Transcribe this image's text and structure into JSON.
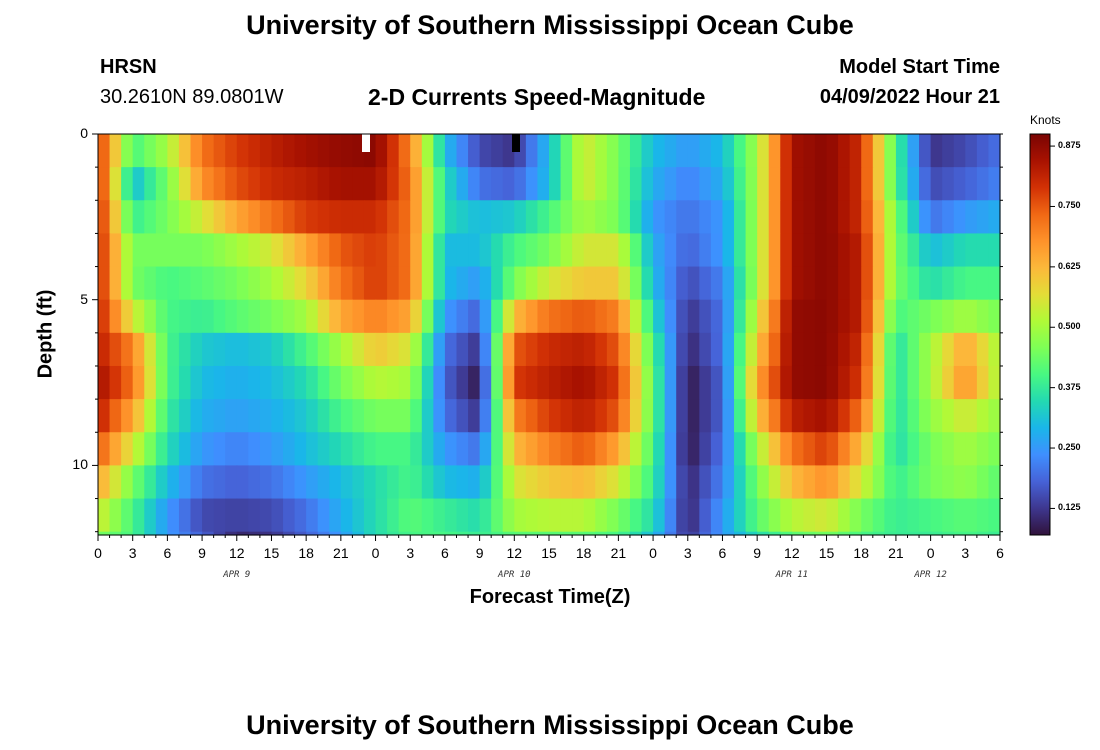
{
  "header": {
    "title": "University of Southern Mississippi Ocean Cube",
    "station": "HRSN",
    "coords": "30.2610N  89.0801W",
    "subtitle": "2-D Currents Speed-Magnitude",
    "model_start_label": "Model Start Time",
    "model_start_time": "04/09/2022 Hour 21"
  },
  "footer": {
    "title": "University of Southern Mississippi Ocean Cube"
  },
  "colorbar": {
    "unit": "Knots",
    "ticks": [
      "0.875",
      "0.750",
      "0.625",
      "0.500",
      "0.375",
      "0.250",
      "0.125"
    ],
    "tick_values": [
      0.875,
      0.75,
      0.625,
      0.5,
      0.375,
      0.25,
      0.125
    ],
    "range": [
      0.07,
      0.9
    ],
    "colors": [
      "#30123b",
      "#3e378f",
      "#4662d7",
      "#3f8fff",
      "#1ab6e9",
      "#23d9b2",
      "#48f882",
      "#7dff56",
      "#b0fa37",
      "#e3dd37",
      "#fcb83a",
      "#fe922a",
      "#f06814",
      "#d23105",
      "#a81201",
      "#7a0403"
    ]
  },
  "chart_data": {
    "type": "heatmap",
    "title": "2-D Currents Speed-Magnitude",
    "xlabel": "Forecast Time(Z)",
    "ylabel": "Depth (ft)",
    "xlim": [
      0,
      78
    ],
    "ylim": [
      12.1,
      0
    ],
    "x_ticks": [
      0,
      3,
      6,
      9,
      12,
      15,
      18,
      21,
      24,
      27,
      30,
      33,
      36,
      39,
      42,
      45,
      48,
      51,
      54,
      57,
      60,
      63,
      66,
      69,
      72,
      75,
      78
    ],
    "x_tick_labels": [
      "0",
      "3",
      "6",
      "9",
      "12",
      "15",
      "18",
      "21",
      "0",
      "3",
      "6",
      "9",
      "12",
      "15",
      "18",
      "21",
      "0",
      "3",
      "6",
      "9",
      "12",
      "15",
      "18",
      "21",
      "0",
      "3",
      "6"
    ],
    "y_ticks": [
      0,
      5,
      10
    ],
    "y_tick_labels": [
      "0",
      "5",
      "10"
    ],
    "date_labels": [
      {
        "label": "APR 9",
        "x": 12
      },
      {
        "label": "APR 10",
        "x": 36
      },
      {
        "label": "APR 11",
        "x": 60
      },
      {
        "label": "APR 12",
        "x": 72
      }
    ],
    "depth_levels": [
      0,
      1,
      2,
      3,
      4,
      5,
      6,
      7,
      8,
      9,
      10,
      11,
      12
    ],
    "time_hours": [
      0,
      3,
      6,
      9,
      12,
      15,
      18,
      21,
      24,
      27,
      30,
      33,
      36,
      39,
      42,
      45,
      48,
      51,
      54,
      57,
      60,
      63,
      66,
      69,
      72,
      75,
      78
    ],
    "speed_knots": [
      [
        0.8,
        0.4,
        0.5,
        0.72,
        0.78,
        0.82,
        0.85,
        0.87,
        0.88,
        0.7,
        0.3,
        0.15,
        0.12,
        0.3,
        0.55,
        0.45,
        0.3,
        0.25,
        0.3,
        0.5,
        0.85,
        0.88,
        0.8,
        0.4,
        0.12,
        0.15,
        0.2
      ],
      [
        0.82,
        0.3,
        0.45,
        0.68,
        0.76,
        0.8,
        0.82,
        0.85,
        0.85,
        0.72,
        0.35,
        0.2,
        0.18,
        0.3,
        0.55,
        0.45,
        0.28,
        0.22,
        0.28,
        0.5,
        0.85,
        0.88,
        0.8,
        0.4,
        0.15,
        0.18,
        0.22
      ],
      [
        0.82,
        0.38,
        0.45,
        0.55,
        0.65,
        0.72,
        0.78,
        0.8,
        0.8,
        0.72,
        0.35,
        0.3,
        0.32,
        0.4,
        0.5,
        0.45,
        0.25,
        0.2,
        0.25,
        0.5,
        0.85,
        0.88,
        0.8,
        0.45,
        0.2,
        0.25,
        0.28
      ],
      [
        0.82,
        0.45,
        0.45,
        0.45,
        0.5,
        0.55,
        0.65,
        0.75,
        0.78,
        0.72,
        0.3,
        0.3,
        0.4,
        0.45,
        0.55,
        0.55,
        0.28,
        0.18,
        0.25,
        0.5,
        0.85,
        0.88,
        0.82,
        0.45,
        0.3,
        0.35,
        0.35
      ],
      [
        0.82,
        0.45,
        0.4,
        0.42,
        0.45,
        0.5,
        0.58,
        0.72,
        0.78,
        0.72,
        0.3,
        0.25,
        0.45,
        0.55,
        0.6,
        0.6,
        0.3,
        0.15,
        0.22,
        0.5,
        0.85,
        0.88,
        0.82,
        0.45,
        0.35,
        0.4,
        0.4
      ],
      [
        0.82,
        0.55,
        0.4,
        0.38,
        0.42,
        0.45,
        0.5,
        0.65,
        0.7,
        0.65,
        0.25,
        0.18,
        0.62,
        0.72,
        0.75,
        0.7,
        0.35,
        0.12,
        0.2,
        0.55,
        0.87,
        0.88,
        0.82,
        0.4,
        0.45,
        0.5,
        0.45
      ],
      [
        0.82,
        0.7,
        0.4,
        0.32,
        0.3,
        0.32,
        0.4,
        0.5,
        0.6,
        0.55,
        0.2,
        0.12,
        0.75,
        0.8,
        0.82,
        0.75,
        0.4,
        0.1,
        0.2,
        0.6,
        0.87,
        0.88,
        0.8,
        0.35,
        0.5,
        0.65,
        0.5
      ],
      [
        0.85,
        0.72,
        0.4,
        0.3,
        0.28,
        0.3,
        0.35,
        0.45,
        0.52,
        0.5,
        0.18,
        0.08,
        0.78,
        0.82,
        0.85,
        0.78,
        0.42,
        0.08,
        0.18,
        0.65,
        0.87,
        0.88,
        0.78,
        0.35,
        0.5,
        0.68,
        0.5
      ],
      [
        0.82,
        0.65,
        0.38,
        0.28,
        0.26,
        0.28,
        0.32,
        0.4,
        0.45,
        0.45,
        0.2,
        0.12,
        0.7,
        0.78,
        0.82,
        0.75,
        0.42,
        0.08,
        0.18,
        0.6,
        0.82,
        0.85,
        0.72,
        0.35,
        0.48,
        0.55,
        0.48
      ],
      [
        0.75,
        0.55,
        0.35,
        0.25,
        0.22,
        0.25,
        0.3,
        0.35,
        0.4,
        0.4,
        0.25,
        0.2,
        0.62,
        0.7,
        0.75,
        0.65,
        0.4,
        0.08,
        0.2,
        0.5,
        0.72,
        0.78,
        0.62,
        0.35,
        0.45,
        0.5,
        0.45
      ],
      [
        0.65,
        0.45,
        0.3,
        0.2,
        0.18,
        0.2,
        0.25,
        0.3,
        0.35,
        0.4,
        0.3,
        0.28,
        0.55,
        0.6,
        0.62,
        0.55,
        0.38,
        0.1,
        0.22,
        0.45,
        0.62,
        0.68,
        0.55,
        0.38,
        0.45,
        0.48,
        0.42
      ],
      [
        0.55,
        0.4,
        0.25,
        0.15,
        0.14,
        0.15,
        0.2,
        0.28,
        0.35,
        0.42,
        0.38,
        0.35,
        0.5,
        0.52,
        0.52,
        0.45,
        0.35,
        0.1,
        0.25,
        0.42,
        0.52,
        0.55,
        0.45,
        0.38,
        0.4,
        0.42,
        0.4
      ],
      [
        0.45,
        0.4,
        0.25,
        0.18,
        0.1,
        0.12,
        0.18,
        0.25,
        0.35,
        0.4,
        0.4,
        0.38,
        0.42,
        0.42,
        0.42,
        0.4,
        0.3,
        0.12,
        0.25,
        0.35,
        0.42,
        0.45,
        0.4,
        0.38,
        0.38,
        0.4,
        0.38
      ]
    ]
  }
}
